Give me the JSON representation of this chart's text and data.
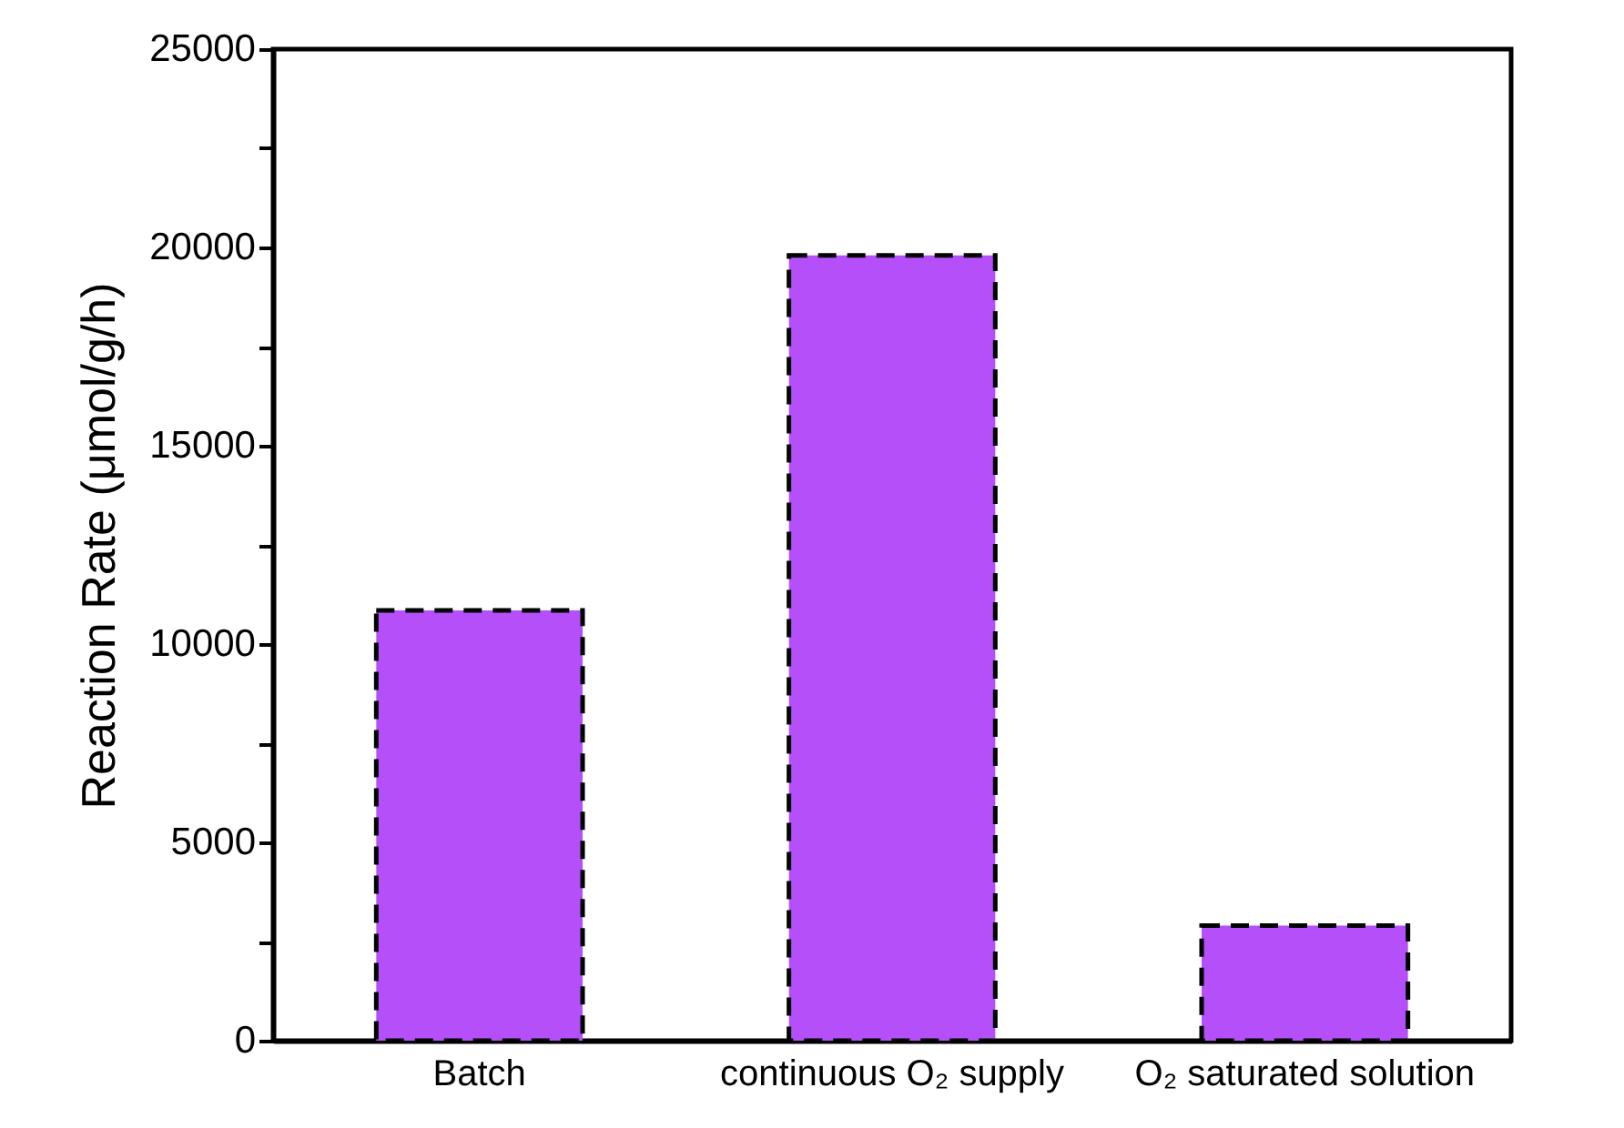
{
  "chart_data": {
    "type": "bar",
    "ylabel": "Reaction Rate (μmol/g/h)",
    "categories": [
      "Batch",
      "continuous O₂ supply",
      "O₂ saturated solution"
    ],
    "values": [
      10850,
      19800,
      2900
    ],
    "color": "#b44ffa",
    "line_style": "dashed",
    "ylim": [
      0,
      25000
    ],
    "yticks": [
      0,
      {
        "value": 2500,
        "label": null
      },
      5000,
      {
        "value": 7500,
        "label": null
      },
      10000,
      {
        "value": 12500,
        "label": null
      },
      15000,
      {
        "value": 17500,
        "label": null
      },
      20000,
      {
        "value": 22500,
        "label": null
      },
      25000
    ],
    "grid": false
  }
}
